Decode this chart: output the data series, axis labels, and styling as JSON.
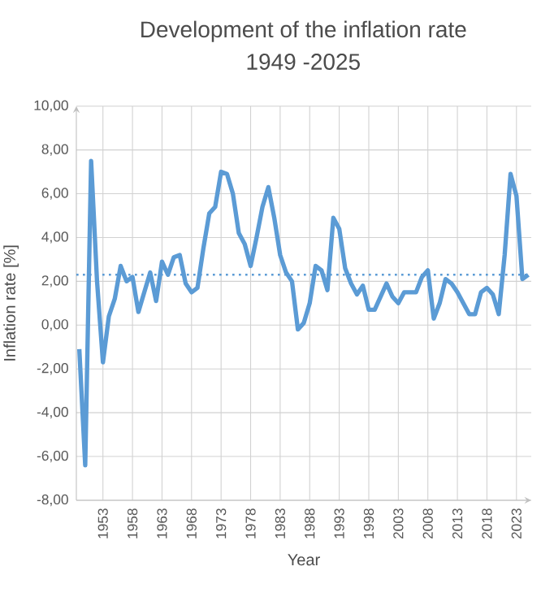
{
  "chart_data": {
    "type": "line",
    "title": "Development of the inflation rate",
    "subtitle": "1949 -2025",
    "xlabel": "Year",
    "ylabel": "Inflation rate [%]",
    "categories": [
      null,
      null,
      null,
      null,
      "1953",
      null,
      null,
      null,
      null,
      "1958",
      null,
      null,
      null,
      null,
      "1963",
      null,
      null,
      null,
      null,
      "1968",
      null,
      null,
      null,
      null,
      "1973",
      null,
      null,
      null,
      null,
      "1978",
      null,
      null,
      null,
      null,
      "1983",
      null,
      null,
      null,
      null,
      "1988",
      null,
      null,
      null,
      null,
      "1993",
      null,
      null,
      null,
      null,
      "1998",
      null,
      null,
      null,
      null,
      "2003",
      null,
      null,
      null,
      null,
      "2008",
      null,
      null,
      null,
      null,
      "2013",
      null,
      null,
      null,
      null,
      "2018",
      null,
      null,
      null,
      null,
      "2023",
      null,
      null
    ],
    "series": [
      {
        "color": "#5b9bd5",
        "values": [
          -1.1,
          -6.4,
          7.5,
          2.0,
          -1.7,
          0.4,
          1.2,
          2.7,
          2.0,
          2.2,
          0.6,
          1.5,
          2.4,
          1.1,
          2.9,
          2.3,
          3.1,
          3.2,
          1.9,
          1.5,
          1.7,
          3.5,
          5.1,
          5.4,
          7.0,
          6.9,
          6.0,
          4.2,
          3.7,
          2.7,
          4.0,
          5.4,
          6.3,
          4.9,
          3.2,
          2.4,
          2.0,
          -0.2,
          0.1,
          1.0,
          2.7,
          2.5,
          1.6,
          4.9,
          4.4,
          2.6,
          1.9,
          1.4,
          1.8,
          0.7,
          0.7,
          1.3,
          1.9,
          1.3,
          1.0,
          1.5,
          1.5,
          1.5,
          2.2,
          2.5,
          0.3,
          1.0,
          2.1,
          1.9,
          1.5,
          1.0,
          0.5,
          0.5,
          1.5,
          1.7,
          1.4,
          0.5,
          3.2,
          6.9,
          5.9,
          2.1,
          2.3
        ]
      }
    ],
    "ylim": [
      -8,
      10
    ],
    "yticks": [
      {
        "value": -8,
        "label": "-8,00"
      },
      {
        "value": -6,
        "label": "-6,00"
      },
      {
        "value": -4,
        "label": "-4,00"
      },
      {
        "value": -2,
        "label": "-2,00"
      },
      {
        "value": 0,
        "label": "0,00"
      },
      {
        "value": 2,
        "label": "2,00"
      },
      {
        "value": 4,
        "label": "4,00"
      },
      {
        "value": 6,
        "label": "6,00"
      },
      {
        "value": 8,
        "label": "8,00"
      },
      {
        "value": 10,
        "label": "10,00"
      }
    ],
    "ref_lines": [
      {
        "axis": "y",
        "value": 2.3,
        "color": "#5b9bd5",
        "line_style": "dotted"
      }
    ],
    "grid": true,
    "marker": "none",
    "line_style": "solid"
  }
}
